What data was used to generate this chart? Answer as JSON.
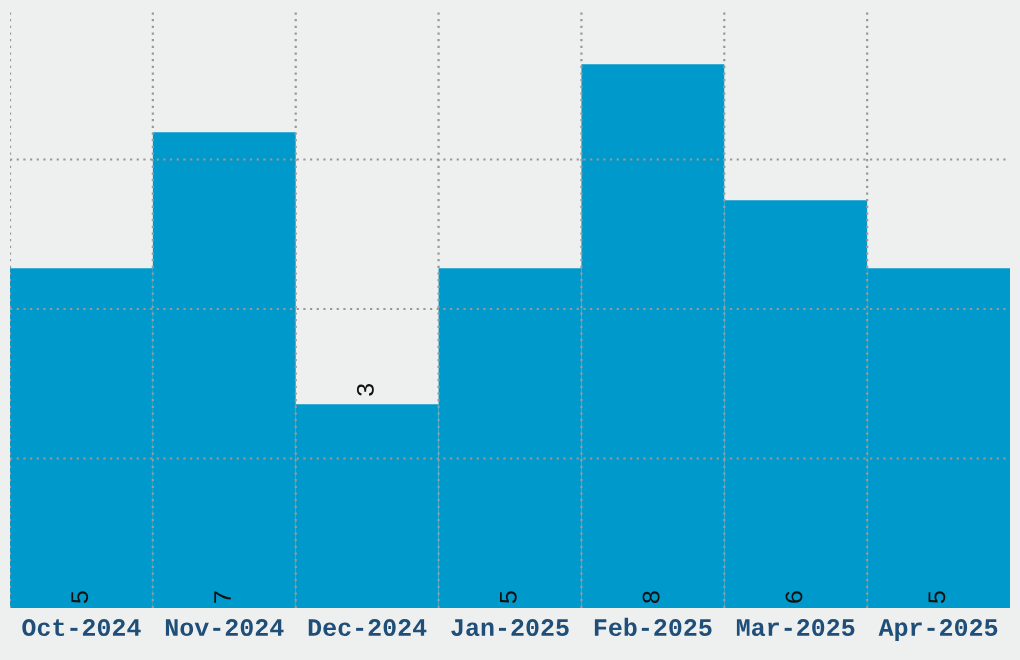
{
  "chart_data": {
    "type": "bar",
    "categories": [
      "Oct-2024",
      "Nov-2024",
      "Dec-2024",
      "Jan-2025",
      "Feb-2025",
      "Mar-2025",
      "Apr-2025"
    ],
    "values": [
      5,
      7,
      3,
      5,
      8,
      6,
      5
    ],
    "color": "#0099cc",
    "ylim": [
      0,
      8.8
    ],
    "yticks": [
      {
        "value": 2.2,
        "label": null
      },
      {
        "value": 4.4,
        "label": null
      },
      {
        "value": 6.6,
        "label": null
      }
    ],
    "tick_labels": "x",
    "grid": true,
    "data_labels": true
  }
}
